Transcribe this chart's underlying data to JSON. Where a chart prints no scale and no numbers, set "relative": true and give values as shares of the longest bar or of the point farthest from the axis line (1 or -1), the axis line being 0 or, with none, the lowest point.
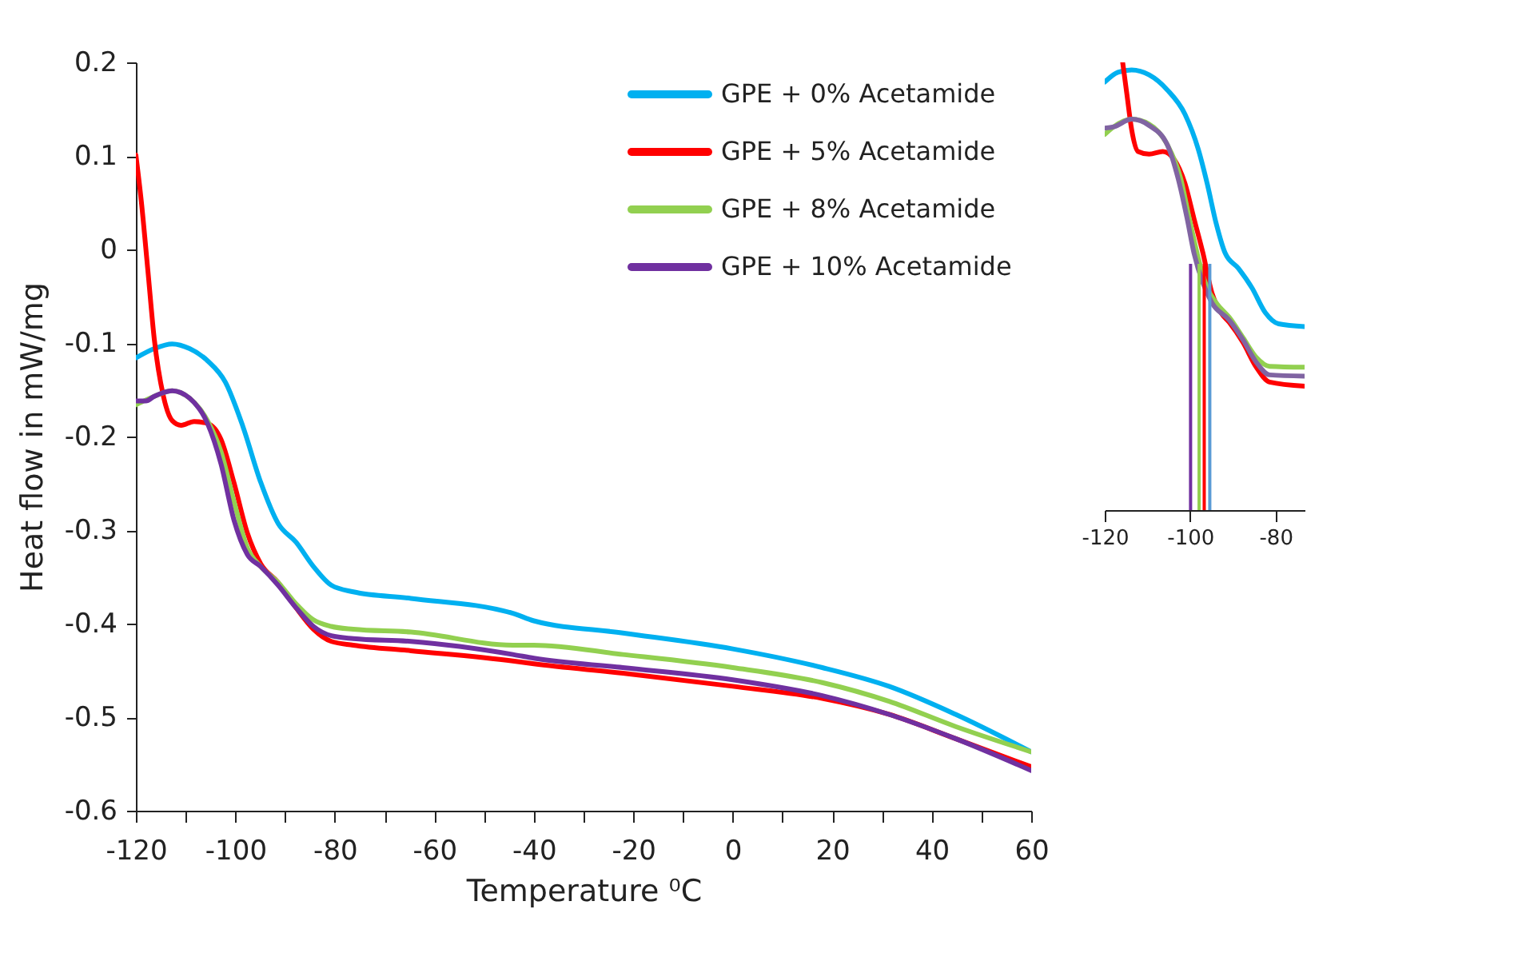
{
  "chart_data": [
    {
      "type": "line",
      "xlabel": "Temperature ⁰C",
      "ylabel": "Heat flow in mW/mg",
      "xlim": [
        -120,
        60
      ],
      "xticks": [
        -120,
        {
          "value": -110,
          "label": null
        },
        -100,
        {
          "value": -90,
          "label": null
        },
        -80,
        {
          "value": -70,
          "label": null
        },
        -60,
        {
          "value": -50,
          "label": null
        },
        -40,
        {
          "value": -30,
          "label": null
        },
        -20,
        {
          "value": -10,
          "label": null
        },
        0,
        {
          "value": 10,
          "label": null
        },
        20,
        {
          "value": 30,
          "label": null
        },
        40,
        {
          "value": 50,
          "label": null
        },
        60
      ],
      "ylim": [
        -0.6,
        0.2
      ],
      "yticks": [
        -0.6,
        -0.5,
        -0.4,
        -0.3,
        -0.2,
        -0.1,
        0,
        0.1,
        0.2
      ],
      "grid": false,
      "legend": "top right",
      "marker": "none",
      "line_style": "solid",
      "series": [
        {
          "name": "GPE + 0% Acetamide",
          "color": "#00b0f0",
          "x": [
            -120,
            -116.3,
            -112.7,
            -109.2,
            -105.6,
            -102.0,
            -98.5,
            -94.9,
            -91.4,
            -87.8,
            -84.3,
            -80.7,
            -76.3,
            -64.7,
            -44.2,
            -40,
            -22.1,
            0,
            18,
            31.4,
            44.8,
            60
          ],
          "values": [
            -0.116,
            -0.106,
            -0.101,
            -0.106,
            -0.119,
            -0.142,
            -0.189,
            -0.249,
            -0.293,
            -0.313,
            -0.339,
            -0.359,
            -0.366,
            -0.373,
            -0.389,
            -0.397,
            -0.41,
            -0.427,
            -0.447,
            -0.467,
            -0.497,
            -0.537
          ]
        },
        {
          "name": "GPE + 5% Acetamide",
          "color": "#ff0000",
          "x": [
            -120,
            -118.9,
            -117.6,
            -116.3,
            -114.5,
            -112.7,
            -110.9,
            -108.3,
            -105.6,
            -102.9,
            -100.3,
            -97.6,
            -94.9,
            -91.4,
            -87.8,
            -84.3,
            -80.7,
            -76.3,
            -64.7,
            -44.2,
            -40,
            -22.1,
            0,
            18,
            31.4,
            44.8,
            60
          ],
          "values": [
            0.101,
            0.051,
            -0.022,
            -0.096,
            -0.156,
            -0.183,
            -0.188,
            -0.184,
            -0.186,
            -0.203,
            -0.249,
            -0.303,
            -0.336,
            -0.356,
            -0.383,
            -0.406,
            -0.419,
            -0.423,
            -0.429,
            -0.44,
            -0.443,
            -0.453,
            -0.467,
            -0.48,
            -0.497,
            -0.523,
            -0.553
          ]
        },
        {
          "name": "GPE + 8% Acetamide",
          "color": "#92d050",
          "x": [
            -120,
            -118,
            -116.3,
            -112.7,
            -109.2,
            -105.6,
            -102.9,
            -100.3,
            -97.6,
            -94.9,
            -91.4,
            -87.8,
            -84.3,
            -80.7,
            -76.3,
            -64.7,
            -44.2,
            -40,
            -22.1,
            0,
            18,
            31.4,
            44.8,
            60
          ],
          "values": [
            -0.166,
            -0.161,
            -0.157,
            -0.151,
            -0.159,
            -0.183,
            -0.216,
            -0.269,
            -0.319,
            -0.339,
            -0.356,
            -0.379,
            -0.396,
            -0.403,
            -0.406,
            -0.409,
            -0.423,
            -0.423,
            -0.433,
            -0.447,
            -0.463,
            -0.483,
            -0.51,
            -0.537
          ]
        },
        {
          "name": "GPE + 10% Acetamide",
          "color": "#7030a0",
          "x": [
            -120,
            -118,
            -116.3,
            -112.7,
            -109.2,
            -105.6,
            -102.9,
            -100.3,
            -97.6,
            -94.9,
            -91.4,
            -87.8,
            -84.3,
            -80.7,
            -76.3,
            -64.7,
            -44.2,
            -40,
            -22.1,
            0,
            18,
            31.4,
            44.8,
            60
          ],
          "values": [
            -0.162,
            -0.162,
            -0.157,
            -0.151,
            -0.159,
            -0.186,
            -0.229,
            -0.289,
            -0.326,
            -0.339,
            -0.359,
            -0.383,
            -0.403,
            -0.413,
            -0.416,
            -0.419,
            -0.433,
            -0.437,
            -0.447,
            -0.46,
            -0.477,
            -0.497,
            -0.523,
            -0.557
          ]
        }
      ]
    },
    {
      "type": "line",
      "relative": true,
      "xlim": [
        -120,
        -73.2
      ],
      "xticks": [
        -120,
        -100,
        -80
      ],
      "grid": false,
      "legend": false,
      "marker": "none",
      "line_style": "solid",
      "ref_lines": [
        {
          "axis": "x",
          "value": -99.9,
          "color": "#7030a0"
        },
        {
          "axis": "x",
          "value": -97.9,
          "color": "#92d050"
        },
        {
          "axis": "x",
          "value": -96.7,
          "color": "#ff0000"
        },
        {
          "axis": "x",
          "value": -95.4,
          "color": "#5b9bd5"
        }
      ],
      "series": [
        {
          "color": "#00b0f0",
          "x": [
            -120,
            -116.9,
            -113.7,
            -109.6,
            -105.4,
            -101.2,
            -98.1,
            -96.0,
            -93.9,
            -91.8,
            -88.7,
            -85.5,
            -82.4,
            -79.3,
            -73.2
          ],
          "values": [
            0.956,
            0.978,
            0.983,
            0.972,
            0.939,
            0.884,
            0.806,
            0.729,
            0.64,
            0.574,
            0.54,
            0.496,
            0.441,
            0.416,
            0.41
          ]
        },
        {
          "color": "#ff0000",
          "x": [
            -115.8,
            -114.8,
            -113.7,
            -112.2,
            -109.6,
            -106.4,
            -103.8,
            -101.2,
            -99.1,
            -97.0,
            -94.9,
            -92.8,
            -90.8,
            -87.6,
            -84.5,
            -81.4,
            -73.2
          ],
          "values": [
            1.0,
            0.928,
            0.85,
            0.801,
            0.795,
            0.801,
            0.784,
            0.729,
            0.651,
            0.574,
            0.485,
            0.441,
            0.419,
            0.374,
            0.319,
            0.286,
            0.277
          ]
        },
        {
          "color": "#92d050",
          "x": [
            -120,
            -117.9,
            -113.7,
            -109.6,
            -105.4,
            -102.2,
            -100.2,
            -98.1,
            -96.0,
            -93.9,
            -90.8,
            -87.6,
            -84.5,
            -81.4,
            -73.2
          ],
          "values": [
            0.839,
            0.856,
            0.873,
            0.862,
            0.817,
            0.74,
            0.651,
            0.563,
            0.496,
            0.463,
            0.43,
            0.385,
            0.341,
            0.321,
            0.319
          ]
        },
        {
          "color": "#8064a2",
          "x": [
            -120,
            -117.9,
            -113.7,
            -109.6,
            -105.4,
            -102.8,
            -100.7,
            -99.1,
            -97.0,
            -94.9,
            -90.8,
            -87.6,
            -84.5,
            -81.4,
            -73.2
          ],
          "values": [
            0.853,
            0.856,
            0.873,
            0.859,
            0.817,
            0.74,
            0.651,
            0.574,
            0.507,
            0.463,
            0.424,
            0.38,
            0.33,
            0.302,
            0.299
          ]
        }
      ]
    }
  ]
}
